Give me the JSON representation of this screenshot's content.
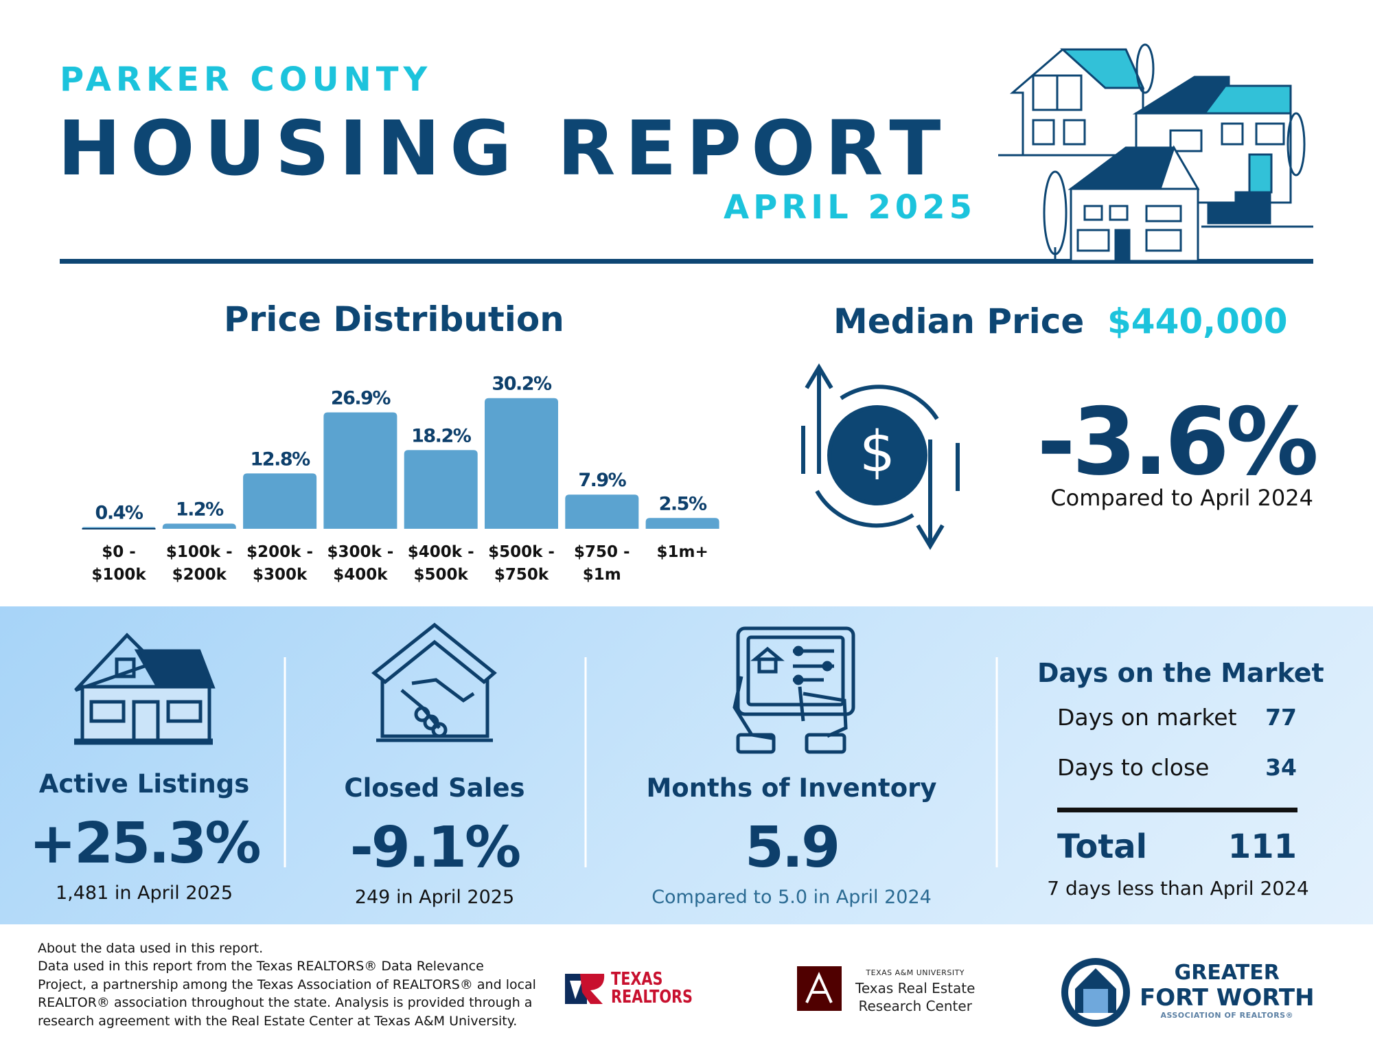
{
  "header": {
    "kicker": "PARKER COUNTY",
    "title": "HOUSING REPORT",
    "period": "APRIL 2025"
  },
  "chart_data": {
    "type": "bar",
    "title": "Price Distribution",
    "categories": [
      "$0 - $100k",
      "$100k - $200k",
      "$200k - $300k",
      "$300k - $400k",
      "$400k - $500k",
      "$500k - $750k",
      "$750 - $1m",
      "$1m+"
    ],
    "values": [
      0.4,
      1.2,
      12.8,
      26.9,
      18.2,
      30.2,
      7.9,
      2.5
    ],
    "value_labels": [
      "0.4%",
      "1.2%",
      "12.8%",
      "26.9%",
      "18.2%",
      "30.2%",
      "7.9%",
      "2.5%"
    ],
    "color": "#5ba3d0"
  },
  "median_price": {
    "label": "Median Price",
    "value": "$440,000",
    "change": "-3.6%",
    "comparison": "Compared to April 2024"
  },
  "stats": [
    {
      "title": "Active Listings",
      "value": "+25.3%",
      "note": "1,481 in April 2025"
    },
    {
      "title": "Closed Sales",
      "value": "-9.1%",
      "note": "249 in April 2025"
    },
    {
      "title": "Months of Inventory",
      "value": "5.9",
      "note": "Compared to 5.0 in April 2024"
    }
  ],
  "days_on_market": {
    "title": "Days on the Market",
    "rows": [
      {
        "label": "Days on market",
        "value": 77
      },
      {
        "label": "Days to close",
        "value": 34
      }
    ],
    "total": {
      "label": "Total",
      "value": 111
    },
    "note": "7 days less than April 2024"
  },
  "footer": {
    "about": [
      "About the data used in this report.",
      "Data used in this report from the Texas REALTORS® Data Relevance",
      "Project, a partnership among the Texas Association of REALTORS® and local",
      "REALTOR® association throughout the state. Analysis is provided through a",
      "research agreement with the Real Estate Center at Texas A&M University."
    ],
    "texas_realtors": [
      "TEXAS",
      "REALTORS"
    ],
    "tamu": {
      "university": "TEXAS A&M UNIVERSITY",
      "center": [
        "Texas Real Estate",
        "Research Center"
      ]
    },
    "gfw": {
      "line1": "GREATER",
      "line2": "FORT WORTH",
      "line3": "ASSOCIATION OF REALTORS®"
    }
  }
}
